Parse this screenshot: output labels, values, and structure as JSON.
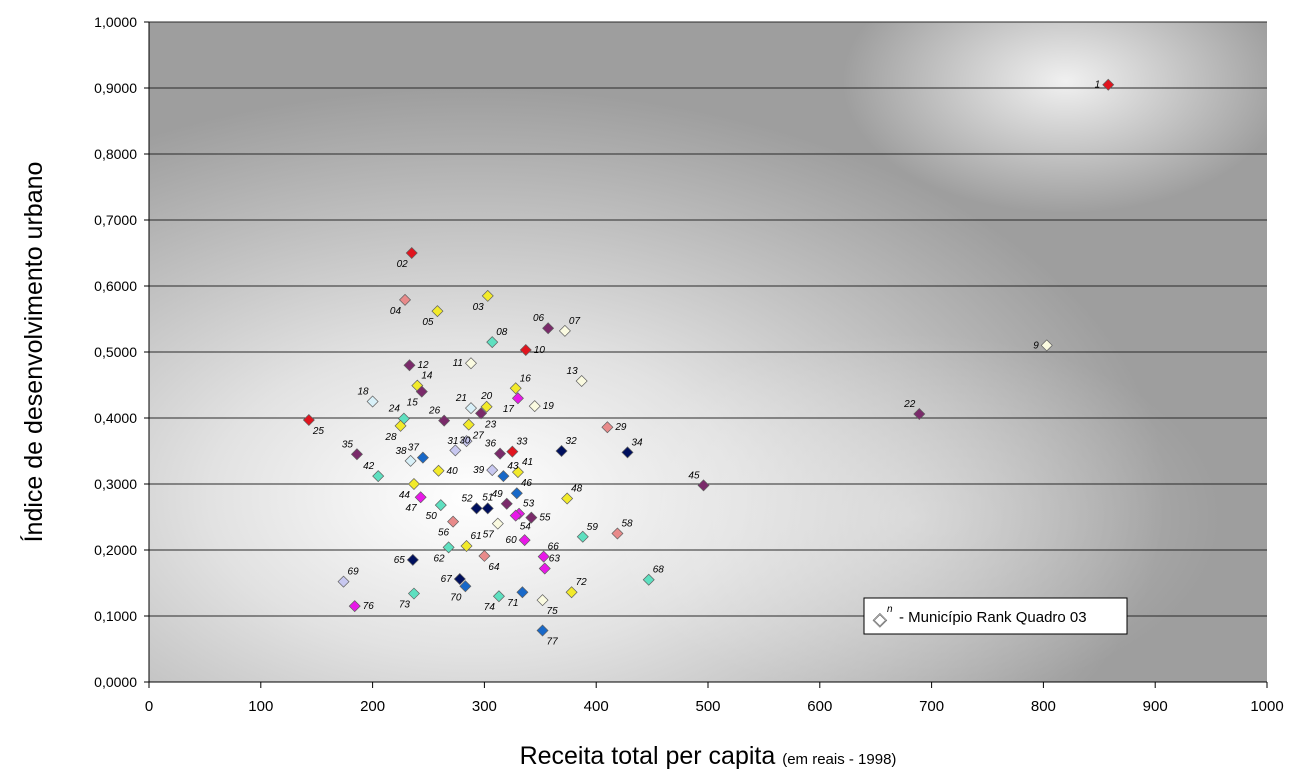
{
  "chart_data": {
    "type": "scatter",
    "xlabel": "Receita total per capita",
    "xlabel_note": "(em reais - 1998)",
    "ylabel": "Índice de desenvolvimento urbano",
    "xlim": [
      0,
      1000
    ],
    "ylim": [
      0,
      1
    ],
    "x_ticks": [
      0,
      100,
      200,
      300,
      400,
      500,
      600,
      700,
      800,
      900,
      1000
    ],
    "x_tick_labels": [
      "0",
      "100",
      "200",
      "300",
      "400",
      "500",
      "600",
      "700",
      "800",
      "900",
      "1000"
    ],
    "y_ticks": [
      0,
      0.1,
      0.2,
      0.3,
      0.4,
      0.5,
      0.6,
      0.7,
      0.8,
      0.9,
      1.0
    ],
    "y_tick_labels": [
      "0,0000",
      "0,1000",
      "0,2000",
      "0,3000",
      "0,4000",
      "0,5000",
      "0,6000",
      "0,7000",
      "0,8000",
      "0,9000",
      "1,0000"
    ],
    "grid": "horizontal",
    "legend": {
      "marker": "◇",
      "superscript": "n",
      "text": "- Município Rank Quadro 03",
      "position": "bottom-right"
    },
    "colors": {
      "red": "#e0141e",
      "salmon": "#e88a8a",
      "yellow": "#f2ea2a",
      "purple": "#7a2a6a",
      "cream": "#fafae0",
      "lightblue": "#d8f0f8",
      "lavender": "#c8c8f0",
      "navy": "#00105e",
      "blue": "#1868c8",
      "teal": "#5ee0c0",
      "magenta": "#e818e8"
    },
    "points": [
      {
        "label": "1",
        "x": 858,
        "y": 0.905,
        "color": "red",
        "pos": "l"
      },
      {
        "label": "02",
        "x": 235,
        "y": 0.65,
        "color": "red",
        "pos": "bl"
      },
      {
        "label": "03",
        "x": 303,
        "y": 0.585,
        "color": "yellow",
        "pos": "bl"
      },
      {
        "label": "04",
        "x": 229,
        "y": 0.579,
        "color": "salmon",
        "pos": "bl"
      },
      {
        "label": "05",
        "x": 258,
        "y": 0.562,
        "color": "yellow",
        "pos": "bl"
      },
      {
        "label": "06",
        "x": 357,
        "y": 0.536,
        "color": "purple",
        "pos": "tl"
      },
      {
        "label": "07",
        "x": 372,
        "y": 0.532,
        "color": "cream",
        "pos": "tr"
      },
      {
        "label": "08",
        "x": 307,
        "y": 0.515,
        "color": "teal",
        "pos": "tr"
      },
      {
        "label": "9",
        "x": 803,
        "y": 0.51,
        "color": "cream",
        "pos": "l"
      },
      {
        "label": "10",
        "x": 337,
        "y": 0.503,
        "color": "red",
        "pos": "r"
      },
      {
        "label": "11",
        "x": 288,
        "y": 0.483,
        "color": "cream",
        "pos": "l"
      },
      {
        "label": "12",
        "x": 233,
        "y": 0.48,
        "color": "purple",
        "pos": "r"
      },
      {
        "label": "13",
        "x": 387,
        "y": 0.456,
        "color": "cream",
        "pos": "tl"
      },
      {
        "label": "14",
        "x": 240,
        "y": 0.449,
        "color": "yellow",
        "pos": "tr"
      },
      {
        "label": "15",
        "x": 244,
        "y": 0.44,
        "color": "purple",
        "pos": "bl"
      },
      {
        "label": "16",
        "x": 328,
        "y": 0.445,
        "color": "yellow",
        "pos": "tr"
      },
      {
        "label": "17",
        "x": 330,
        "y": 0.43,
        "color": "magenta",
        "pos": "bl"
      },
      {
        "label": "18",
        "x": 200,
        "y": 0.425,
        "color": "lightblue",
        "pos": "tl"
      },
      {
        "label": "19",
        "x": 345,
        "y": 0.418,
        "color": "cream",
        "pos": "r"
      },
      {
        "label": "20",
        "x": 302,
        "y": 0.417,
        "color": "yellow",
        "pos": "t"
      },
      {
        "label": "21",
        "x": 288,
        "y": 0.415,
        "color": "lightblue",
        "pos": "tl"
      },
      {
        "label": "22",
        "x": 689,
        "y": 0.406,
        "color": "purple",
        "pos": "tl"
      },
      {
        "label": "23",
        "x": 297,
        "y": 0.407,
        "color": "purple",
        "pos": "br"
      },
      {
        "label": "24",
        "x": 228,
        "y": 0.399,
        "color": "teal",
        "pos": "tl"
      },
      {
        "label": "25",
        "x": 143,
        "y": 0.397,
        "color": "red",
        "pos": "br"
      },
      {
        "label": "26",
        "x": 264,
        "y": 0.396,
        "color": "purple",
        "pos": "tl"
      },
      {
        "label": "27",
        "x": 286,
        "y": 0.39,
        "color": "yellow",
        "pos": "br"
      },
      {
        "label": "28",
        "x": 225,
        "y": 0.388,
        "color": "yellow",
        "pos": "bl"
      },
      {
        "label": "29",
        "x": 410,
        "y": 0.386,
        "color": "salmon",
        "pos": "r"
      },
      {
        "label": "30",
        "x": 274,
        "y": 0.351,
        "color": "lavender",
        "pos": "tr"
      },
      {
        "label": "31",
        "x": 284,
        "y": 0.365,
        "color": "lavender",
        "pos": "l"
      },
      {
        "label": "32",
        "x": 369,
        "y": 0.35,
        "color": "navy",
        "pos": "tr"
      },
      {
        "label": "33",
        "x": 325,
        "y": 0.349,
        "color": "red",
        "pos": "tr"
      },
      {
        "label": "34",
        "x": 428,
        "y": 0.348,
        "color": "navy",
        "pos": "tr"
      },
      {
        "label": "35",
        "x": 186,
        "y": 0.345,
        "color": "purple",
        "pos": "tl"
      },
      {
        "label": "36",
        "x": 314,
        "y": 0.346,
        "color": "purple",
        "pos": "tl"
      },
      {
        "label": "37",
        "x": 245,
        "y": 0.34,
        "color": "blue",
        "pos": "tl"
      },
      {
        "label": "38",
        "x": 234,
        "y": 0.335,
        "color": "lightblue",
        "pos": "tl"
      },
      {
        "label": "39",
        "x": 307,
        "y": 0.321,
        "color": "lavender",
        "pos": "l"
      },
      {
        "label": "40",
        "x": 259,
        "y": 0.32,
        "color": "yellow",
        "pos": "r"
      },
      {
        "label": "41",
        "x": 330,
        "y": 0.318,
        "color": "yellow",
        "pos": "tr"
      },
      {
        "label": "42",
        "x": 205,
        "y": 0.312,
        "color": "teal",
        "pos": "tl"
      },
      {
        "label": "43",
        "x": 317,
        "y": 0.312,
        "color": "blue",
        "pos": "tr"
      },
      {
        "label": "44",
        "x": 237,
        "y": 0.3,
        "color": "yellow",
        "pos": "bl"
      },
      {
        "label": "45",
        "x": 496,
        "y": 0.298,
        "color": "purple",
        "pos": "tl"
      },
      {
        "label": "46",
        "x": 329,
        "y": 0.286,
        "color": "blue",
        "pos": "tr"
      },
      {
        "label": "47",
        "x": 243,
        "y": 0.28,
        "color": "magenta",
        "pos": "bl"
      },
      {
        "label": "48",
        "x": 374,
        "y": 0.278,
        "color": "yellow",
        "pos": "tr"
      },
      {
        "label": "49",
        "x": 320,
        "y": 0.27,
        "color": "purple",
        "pos": "tl"
      },
      {
        "label": "50",
        "x": 261,
        "y": 0.268,
        "color": "teal",
        "pos": "bl"
      },
      {
        "label": "51",
        "x": 303,
        "y": 0.263,
        "color": "navy",
        "pos": "t"
      },
      {
        "label": "52",
        "x": 293,
        "y": 0.263,
        "color": "navy",
        "pos": "tl"
      },
      {
        "label": "53",
        "x": 331,
        "y": 0.255,
        "color": "magenta",
        "pos": "tr"
      },
      {
        "label": "54",
        "x": 328,
        "y": 0.252,
        "color": "magenta",
        "pos": "br"
      },
      {
        "label": "55",
        "x": 342,
        "y": 0.249,
        "color": "purple",
        "pos": "r"
      },
      {
        "label": "56",
        "x": 272,
        "y": 0.243,
        "color": "salmon",
        "pos": "bl"
      },
      {
        "label": "57",
        "x": 312,
        "y": 0.24,
        "color": "cream",
        "pos": "bl"
      },
      {
        "label": "58",
        "x": 419,
        "y": 0.225,
        "color": "salmon",
        "pos": "tr"
      },
      {
        "label": "59",
        "x": 388,
        "y": 0.22,
        "color": "teal",
        "pos": "tr"
      },
      {
        "label": "60",
        "x": 336,
        "y": 0.215,
        "color": "magenta",
        "pos": "l"
      },
      {
        "label": "61",
        "x": 284,
        "y": 0.206,
        "color": "yellow",
        "pos": "tr"
      },
      {
        "label": "62",
        "x": 268,
        "y": 0.204,
        "color": "teal",
        "pos": "bl"
      },
      {
        "label": "63",
        "x": 354,
        "y": 0.172,
        "color": "magenta",
        "pos": "tr"
      },
      {
        "label": "64",
        "x": 300,
        "y": 0.191,
        "color": "salmon",
        "pos": "br"
      },
      {
        "label": "65",
        "x": 236,
        "y": 0.185,
        "color": "navy",
        "pos": "l"
      },
      {
        "label": "66",
        "x": 353,
        "y": 0.19,
        "color": "magenta",
        "pos": "tr"
      },
      {
        "label": "67",
        "x": 278,
        "y": 0.156,
        "color": "navy",
        "pos": "l"
      },
      {
        "label": "68",
        "x": 447,
        "y": 0.155,
        "color": "teal",
        "pos": "tr"
      },
      {
        "label": "69",
        "x": 174,
        "y": 0.152,
        "color": "lavender",
        "pos": "tr"
      },
      {
        "label": "70",
        "x": 283,
        "y": 0.145,
        "color": "blue",
        "pos": "bl"
      },
      {
        "label": "71",
        "x": 334,
        "y": 0.136,
        "color": "blue",
        "pos": "bl"
      },
      {
        "label": "72",
        "x": 378,
        "y": 0.136,
        "color": "yellow",
        "pos": "tr"
      },
      {
        "label": "73",
        "x": 237,
        "y": 0.134,
        "color": "teal",
        "pos": "bl"
      },
      {
        "label": "74",
        "x": 313,
        "y": 0.13,
        "color": "teal",
        "pos": "bl"
      },
      {
        "label": "75",
        "x": 352,
        "y": 0.124,
        "color": "cream",
        "pos": "br"
      },
      {
        "label": "76",
        "x": 184,
        "y": 0.115,
        "color": "magenta",
        "pos": "r"
      },
      {
        "label": "77",
        "x": 352,
        "y": 0.078,
        "color": "blue",
        "pos": "br"
      }
    ]
  }
}
